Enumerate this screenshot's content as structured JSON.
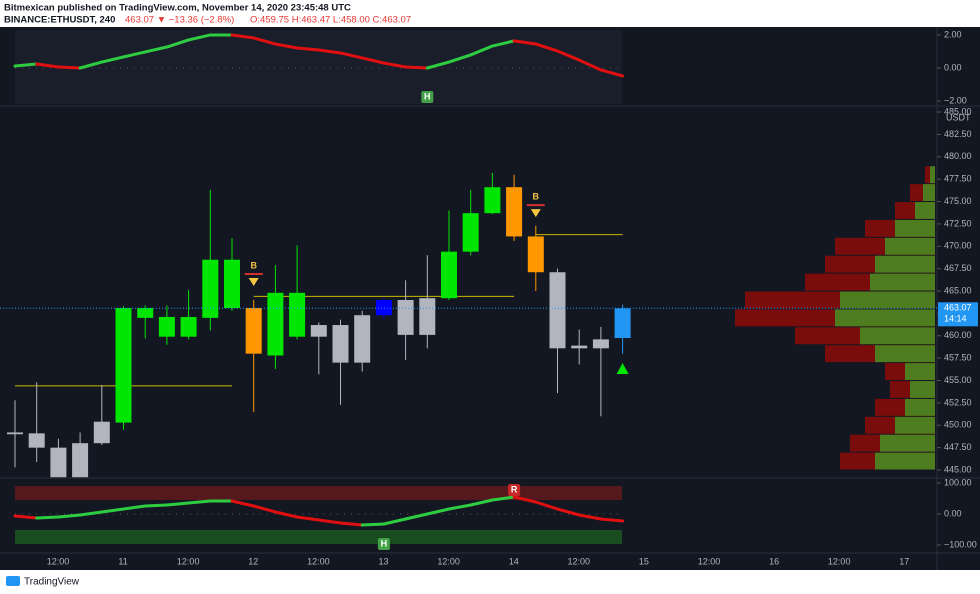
{
  "header": {
    "publisher": "Bitmexican published on TradingView.com, November 14, 2020 23:45:48 UTC",
    "symbol": "BINANCE:ETHUSDT, 240",
    "change": "463.07 ▼ −13.36 (−2.8%)",
    "ohlc": "O:459.75 H:463.47 L:458.00 C:463.07"
  },
  "footer": {
    "logo": "TradingView"
  },
  "chart_data": [
    {
      "type": "line",
      "color_up": "#2ecc40",
      "color_down": "#e01010",
      "values": [
        0.12,
        0.24,
        0.06,
        0,
        0.36,
        0.67,
        0.97,
        1.27,
        1.7,
        2.0,
        2.0,
        1.82,
        1.45,
        1.21,
        1.09,
        0.91,
        0.61,
        0.3,
        0.06,
        0,
        0.36,
        0.79,
        1.33,
        1.64,
        1.45,
        1.03,
        0.48,
        -0.12,
        -0.48
      ],
      "ylim": [
        -2.24,
        2.3
      ],
      "yticks": [
        {
          "value": 2,
          "label": "2.00"
        },
        {
          "value": 0,
          "label": "0.00"
        },
        {
          "value": -2,
          "label": "−2.00"
        }
      ],
      "annotations": [
        "H"
      ]
    },
    {
      "type": "candlestick",
      "unit": "USDT",
      "open": [
        449.2,
        449.1,
        447.5,
        444.2,
        448.0,
        450.3,
        463.1,
        462.1,
        459.9,
        462.0,
        463.1,
        463.1,
        457.8,
        459.9,
        461.2,
        461.2,
        457.0,
        462.3,
        464.0,
        460.1,
        464.2,
        469.4,
        473.7,
        476.6,
        471.1,
        467.1,
        458.9,
        458.6,
        459.75
      ],
      "high": [
        452.8,
        454.8,
        448.5,
        449.2,
        454.5,
        463.3,
        463.4,
        463.4,
        465.1,
        476.3,
        470.9,
        464.0,
        467.9,
        470.1,
        461.5,
        461.8,
        462.8,
        464.2,
        466.2,
        469.0,
        474.0,
        476.3,
        478.2,
        478.0,
        472.3,
        467.5,
        460.7,
        461.0,
        463.47
      ],
      "low": [
        445.3,
        445.9,
        444.2,
        444.2,
        447.8,
        449.5,
        459.7,
        459.0,
        459.6,
        460.6,
        462.8,
        451.5,
        456.3,
        459.6,
        455.7,
        452.3,
        456.0,
        461.9,
        457.3,
        458.6,
        464.0,
        469.0,
        473.6,
        470.6,
        465.0,
        453.6,
        456.8,
        451.0,
        458.0
      ],
      "close": [
        449.0,
        447.5,
        444.2,
        448.0,
        450.4,
        463.1,
        462.0,
        459.9,
        462.1,
        468.5,
        468.5,
        458.0,
        464.8,
        464.8,
        459.9,
        457.0,
        462.3,
        464.0,
        460.1,
        464.2,
        469.4,
        473.7,
        476.6,
        471.1,
        467.1,
        458.6,
        458.6,
        459.6,
        463.07
      ],
      "colors": [
        "#b2b5be",
        "#b2b5be",
        "#b2b5be",
        "#b2b5be",
        "#b2b5be",
        "#00e600",
        "#00e600",
        "#00e600",
        "#00e600",
        "#00e600",
        "#00e600",
        "#ff9800",
        "#00e600",
        "#00e600",
        "#b2b5be",
        "#b2b5be",
        "#b2b5be",
        "#0000ff",
        "#b2b5be",
        "#b2b5be",
        "#00e600",
        "#00e600",
        "#00e600",
        "#ff9800",
        "#ff9800",
        "#b2b5be",
        "#b2b5be",
        "#b2b5be",
        "#2196f3"
      ],
      "ylim": [
        444.11,
        485.45
      ],
      "yticks": [
        {
          "value": 445,
          "label": "445.00"
        },
        {
          "value": 447.5,
          "label": "447.50"
        },
        {
          "value": 450,
          "label": "450.00"
        },
        {
          "value": 452.5,
          "label": "452.50"
        },
        {
          "value": 455,
          "label": "455.00"
        },
        {
          "value": 457.5,
          "label": "457.50"
        },
        {
          "value": 460,
          "label": "460.00"
        },
        {
          "value": 462.5,
          "label": "462.50"
        },
        {
          "value": 465,
          "label": "465.00"
        },
        {
          "value": 467.5,
          "label": "467.50"
        },
        {
          "value": 470,
          "label": "470.00"
        },
        {
          "value": 472.5,
          "label": "472.50"
        },
        {
          "value": 475,
          "label": "475.00"
        },
        {
          "value": 477.5,
          "label": "477.50"
        },
        {
          "value": 480,
          "label": "480.00"
        },
        {
          "value": 482.5,
          "label": "482.50"
        },
        {
          "value": 485,
          "label": "485.00"
        }
      ],
      "last_price": {
        "value": 463.07,
        "label": "463.07"
      },
      "countdown": "14:14",
      "levels": [
        454.4,
        464.4,
        471.3
      ],
      "annotations": [
        "B",
        "B"
      ],
      "profile": {
        "prices": [
          446,
          448,
          450,
          452,
          454,
          456,
          458,
          460,
          462,
          464,
          466,
          468,
          470,
          472,
          474,
          476,
          478
        ],
        "total": [
          95,
          85,
          70,
          60,
          45,
          50,
          110,
          140,
          200,
          190,
          130,
          110,
          100,
          70,
          40,
          25,
          10
        ],
        "buy": [
          60,
          55,
          40,
          30,
          25,
          30,
          60,
          75,
          100,
          95,
          65,
          60,
          50,
          40,
          20,
          12,
          5
        ]
      },
      "x_labels": [
        "12:00",
        "11",
        "12:00",
        "12",
        "12:00",
        "13",
        "12:00",
        "14",
        "12:00",
        "15",
        "12:00",
        "16",
        "12:00",
        "17"
      ]
    },
    {
      "type": "line",
      "color_up": "#2ecc40",
      "color_down": "#e01010",
      "values": [
        -6.5,
        -12.9,
        -9.7,
        -3.2,
        6.5,
        16.1,
        25.8,
        29,
        35.5,
        41.9,
        41.9,
        25.8,
        6.5,
        -9.7,
        -19.4,
        -29,
        -35.5,
        -32.3,
        -16.1,
        0,
        16.1,
        29,
        45.2,
        54.8,
        38.7,
        16.1,
        -3.2,
        -16.1,
        -22.6
      ],
      "ylim": [
        -122.6,
        109.7
      ],
      "yticks": [
        {
          "value": 100,
          "label": "100.00"
        },
        {
          "value": 0,
          "label": "0.00"
        },
        {
          "value": -100,
          "label": "−100.00"
        }
      ],
      "annotations": [
        "R",
        "H"
      ]
    }
  ]
}
